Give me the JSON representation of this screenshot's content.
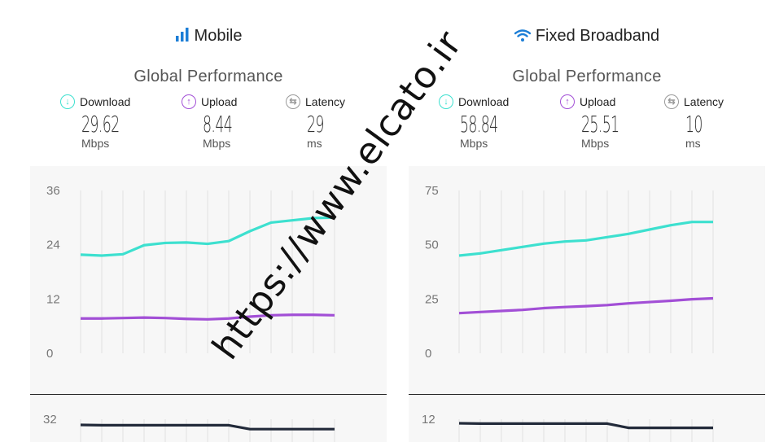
{
  "colors": {
    "download": "#3de0cf",
    "upload": "#a24fd6",
    "latency": "#222a3a",
    "accent": "#1c7ed6"
  },
  "mobile": {
    "title": "Mobile",
    "icon": "signal-bars-icon",
    "section": "Global Performance",
    "download": {
      "label": "Download",
      "value": "29.62",
      "unit": "Mbps"
    },
    "upload": {
      "label": "Upload",
      "value": "8.44",
      "unit": "Mbps"
    },
    "latency": {
      "label": "Latency",
      "value": "29",
      "unit": "ms"
    },
    "chart_data": {
      "type": "line",
      "y_ticks": [
        "36",
        "24",
        "12",
        "0"
      ],
      "ylim": [
        0,
        36
      ],
      "x": [
        1,
        2,
        3,
        4,
        5,
        6,
        7,
        8,
        9,
        10,
        11,
        12,
        13
      ],
      "series": [
        {
          "key": "download",
          "values": [
            21.8,
            21.6,
            21.9,
            23.9,
            24.4,
            24.5,
            24.2,
            24.8,
            27.0,
            28.9,
            29.4,
            29.9,
            30.0
          ]
        },
        {
          "key": "upload",
          "values": [
            7.7,
            7.7,
            7.8,
            7.9,
            7.8,
            7.6,
            7.5,
            7.7,
            8.1,
            8.4,
            8.5,
            8.5,
            8.4
          ]
        }
      ],
      "latency_chart": {
        "y_tick": "32",
        "values": [
          31.5,
          31.4,
          31.4,
          31.4,
          31.4,
          31.4,
          31.4,
          31.4,
          30.2,
          30.2,
          30.2,
          30.2,
          30.2
        ]
      }
    }
  },
  "fixed": {
    "title": "Fixed Broadband",
    "icon": "wifi-icon",
    "section": "Global Performance",
    "download": {
      "label": "Download",
      "value": "58.84",
      "unit": "Mbps"
    },
    "upload": {
      "label": "Upload",
      "value": "25.51",
      "unit": "Mbps"
    },
    "latency": {
      "label": "Latency",
      "value": "10",
      "unit": "ms"
    },
    "chart_data": {
      "type": "line",
      "y_ticks": [
        "75",
        "50",
        "25",
        "0"
      ],
      "ylim": [
        0,
        75
      ],
      "x": [
        1,
        2,
        3,
        4,
        5,
        6,
        7,
        8,
        9,
        10,
        11,
        12,
        13
      ],
      "series": [
        {
          "key": "download",
          "values": [
            45,
            46,
            47.5,
            49,
            50.5,
            51.5,
            52,
            53.5,
            55,
            57,
            59,
            60.5,
            60.5
          ]
        },
        {
          "key": "upload",
          "values": [
            18.5,
            19,
            19.5,
            20,
            20.8,
            21.3,
            21.7,
            22.2,
            23,
            23.6,
            24.2,
            24.9,
            25.3
          ]
        }
      ],
      "latency_chart": {
        "y_tick": "12",
        "values": [
          12,
          11.9,
          11.9,
          11.9,
          11.9,
          11.9,
          11.9,
          11.9,
          10.6,
          10.6,
          10.6,
          10.6,
          10.6
        ]
      }
    }
  },
  "watermark": "https://www.elcato.ir"
}
